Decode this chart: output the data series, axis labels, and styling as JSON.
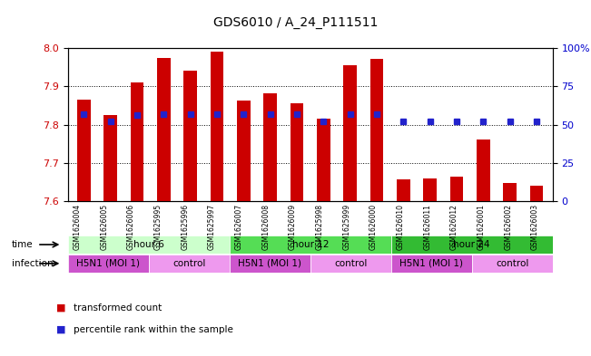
{
  "title": "GDS6010 / A_24_P111511",
  "samples": [
    "GSM1626004",
    "GSM1626005",
    "GSM1626006",
    "GSM1625995",
    "GSM1625996",
    "GSM1625997",
    "GSM1626007",
    "GSM1626008",
    "GSM1626009",
    "GSM1625998",
    "GSM1625999",
    "GSM1626000",
    "GSM1626010",
    "GSM1626011",
    "GSM1626012",
    "GSM1626001",
    "GSM1626002",
    "GSM1626003"
  ],
  "bar_values": [
    7.865,
    7.825,
    7.91,
    7.975,
    7.94,
    7.99,
    7.863,
    7.882,
    7.855,
    7.815,
    7.955,
    7.972,
    7.658,
    7.66,
    7.665,
    7.76,
    7.648,
    7.64
  ],
  "dot_values": [
    57,
    52,
    56,
    57,
    57,
    57,
    57,
    57,
    57,
    52,
    57,
    57,
    52,
    52,
    52,
    52,
    52,
    52
  ],
  "ylim_left": [
    7.6,
    8.0
  ],
  "ylim_right": [
    0,
    100
  ],
  "yticks_left": [
    7.6,
    7.7,
    7.8,
    7.9,
    8.0
  ],
  "yticks_right": [
    0,
    25,
    50,
    75,
    100
  ],
  "ytick_labels_right": [
    "0",
    "25",
    "50",
    "75",
    "100%"
  ],
  "bar_color": "#cc0000",
  "dot_color": "#2222cc",
  "bar_bottom": 7.6,
  "time_groups": [
    {
      "label": "hour 6",
      "start": 0,
      "end": 6,
      "color": "#ccffcc"
    },
    {
      "label": "hour 12",
      "start": 6,
      "end": 12,
      "color": "#55dd55"
    },
    {
      "label": "hour 24",
      "start": 12,
      "end": 18,
      "color": "#33bb33"
    }
  ],
  "infection_groups": [
    {
      "label": "H5N1 (MOI 1)",
      "start": 0,
      "end": 3,
      "color": "#cc55cc"
    },
    {
      "label": "control",
      "start": 3,
      "end": 6,
      "color": "#ee99ee"
    },
    {
      "label": "H5N1 (MOI 1)",
      "start": 6,
      "end": 9,
      "color": "#cc55cc"
    },
    {
      "label": "control",
      "start": 9,
      "end": 12,
      "color": "#ee99ee"
    },
    {
      "label": "H5N1 (MOI 1)",
      "start": 12,
      "end": 15,
      "color": "#cc55cc"
    },
    {
      "label": "control",
      "start": 15,
      "end": 18,
      "color": "#ee99ee"
    }
  ],
  "bg_color": "#ffffff",
  "tick_label_color_left": "#cc0000",
  "tick_label_color_right": "#0000cc",
  "grid_yticks": [
    7.7,
    7.8,
    7.9
  ]
}
